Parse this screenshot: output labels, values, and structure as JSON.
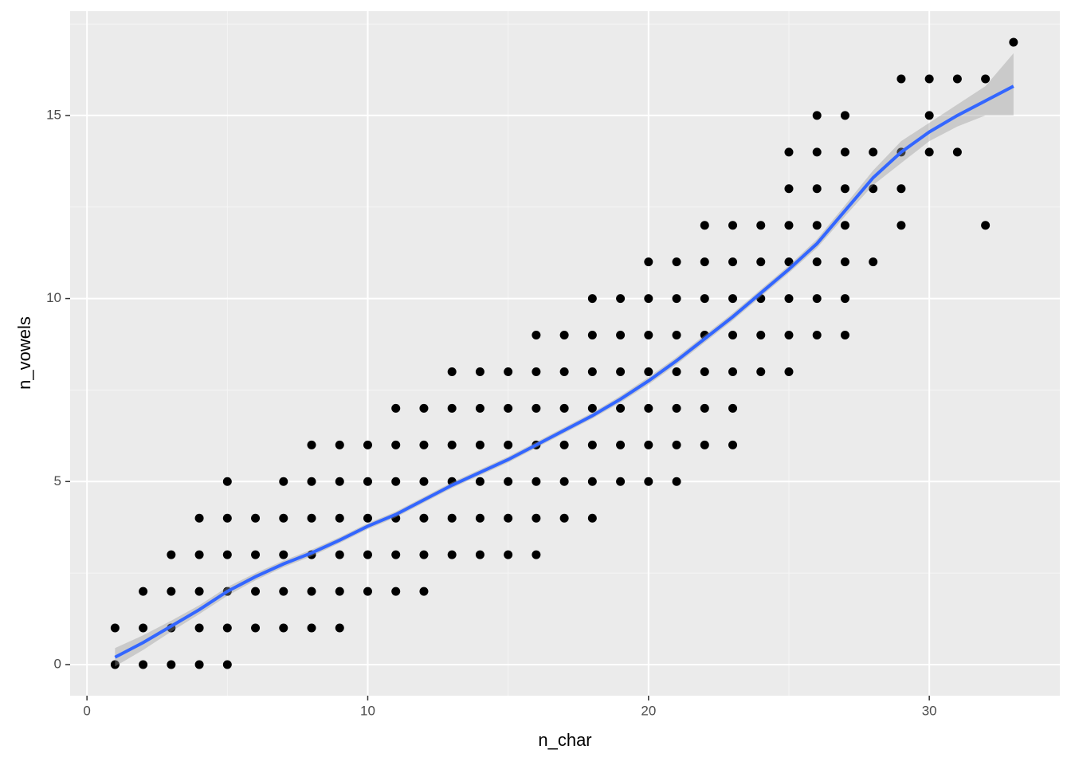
{
  "chart_data": {
    "type": "scatter",
    "x_label": "n_char",
    "y_label": "n_vowels",
    "xlim": [
      -0.6,
      34.65
    ],
    "ylim": [
      -0.85,
      17.85
    ],
    "xticks": [
      0,
      10,
      20,
      30
    ],
    "yticks": [
      0,
      5,
      10,
      15
    ],
    "grid": true,
    "points": {
      "color": "#000000",
      "x": [
        1,
        1,
        2,
        2,
        2,
        3,
        3,
        3,
        3,
        4,
        4,
        4,
        4,
        4,
        5,
        5,
        5,
        5,
        5,
        5,
        6,
        6,
        6,
        6,
        7,
        7,
        7,
        7,
        7,
        8,
        8,
        8,
        8,
        8,
        8,
        9,
        9,
        9,
        9,
        9,
        9,
        10,
        10,
        10,
        10,
        10,
        11,
        11,
        11,
        11,
        11,
        11,
        12,
        12,
        12,
        12,
        12,
        12,
        13,
        13,
        13,
        13,
        13,
        13,
        14,
        14,
        14,
        14,
        14,
        14,
        15,
        15,
        15,
        15,
        15,
        15,
        16,
        16,
        16,
        16,
        16,
        16,
        16,
        17,
        17,
        17,
        17,
        17,
        17,
        18,
        18,
        18,
        18,
        18,
        18,
        18,
        19,
        19,
        19,
        19,
        19,
        19,
        20,
        20,
        20,
        20,
        20,
        20,
        20,
        21,
        21,
        21,
        21,
        21,
        21,
        21,
        22,
        22,
        22,
        22,
        22,
        22,
        22,
        23,
        23,
        23,
        23,
        23,
        23,
        23,
        24,
        24,
        24,
        24,
        24,
        25,
        25,
        25,
        25,
        25,
        25,
        25,
        26,
        26,
        26,
        26,
        26,
        26,
        26,
        27,
        27,
        27,
        27,
        27,
        27,
        27,
        28,
        28,
        28,
        29,
        29,
        29,
        29,
        30,
        30,
        30,
        31,
        31,
        32,
        32,
        33
      ],
      "y": [
        0,
        1,
        0,
        1,
        2,
        0,
        1,
        2,
        3,
        0,
        1,
        2,
        3,
        4,
        0,
        1,
        2,
        3,
        4,
        5,
        1,
        2,
        3,
        4,
        1,
        2,
        3,
        4,
        5,
        1,
        2,
        3,
        4,
        5,
        6,
        1,
        2,
        3,
        4,
        5,
        6,
        2,
        3,
        4,
        5,
        6,
        2,
        3,
        4,
        5,
        6,
        7,
        2,
        3,
        4,
        5,
        6,
        7,
        3,
        4,
        5,
        6,
        7,
        8,
        3,
        4,
        5,
        6,
        7,
        8,
        3,
        4,
        5,
        6,
        7,
        8,
        3,
        4,
        5,
        6,
        7,
        8,
        9,
        4,
        5,
        6,
        7,
        8,
        9,
        4,
        5,
        6,
        7,
        8,
        9,
        10,
        5,
        6,
        7,
        8,
        9,
        10,
        5,
        6,
        7,
        8,
        9,
        10,
        11,
        5,
        6,
        7,
        8,
        9,
        10,
        11,
        6,
        7,
        8,
        9,
        10,
        11,
        12,
        6,
        7,
        8,
        9,
        10,
        11,
        12,
        8,
        9,
        10,
        11,
        12,
        8,
        9,
        10,
        11,
        12,
        13,
        14,
        9,
        10,
        11,
        12,
        13,
        14,
        15,
        9,
        10,
        11,
        12,
        13,
        14,
        15,
        11,
        13,
        14,
        12,
        13,
        14,
        16,
        14,
        15,
        16,
        14,
        16,
        12,
        16,
        17
      ]
    },
    "smooth": {
      "color": "#3366FF",
      "band_color": "#999999",
      "x": [
        1,
        2,
        3,
        4,
        5,
        6,
        7,
        8,
        9,
        10,
        11,
        12,
        13,
        14,
        15,
        16,
        17,
        18,
        19,
        20,
        21,
        22,
        23,
        24,
        25,
        26,
        27,
        28,
        29,
        30,
        31,
        32,
        33
      ],
      "y": [
        0.2,
        0.6,
        1.05,
        1.5,
        2.0,
        2.4,
        2.75,
        3.05,
        3.4,
        3.78,
        4.1,
        4.5,
        4.9,
        5.25,
        5.6,
        6.0,
        6.4,
        6.8,
        7.25,
        7.75,
        8.3,
        8.9,
        9.5,
        10.15,
        10.8,
        11.5,
        12.4,
        13.3,
        14.0,
        14.55,
        15.0,
        15.4,
        15.8
      ],
      "ymin": [
        -0.05,
        0.4,
        0.9,
        1.38,
        1.88,
        2.3,
        2.66,
        2.96,
        3.32,
        3.7,
        4.02,
        4.42,
        4.82,
        5.17,
        5.52,
        5.92,
        6.32,
        6.72,
        7.16,
        7.65,
        8.2,
        8.8,
        9.4,
        10.05,
        10.7,
        11.38,
        12.25,
        13.1,
        13.7,
        14.3,
        14.7,
        15.0,
        15.0
      ],
      "ymax": [
        0.45,
        0.8,
        1.2,
        1.62,
        2.12,
        2.5,
        2.84,
        3.14,
        3.48,
        3.86,
        4.18,
        4.58,
        4.98,
        5.33,
        5.68,
        6.08,
        6.48,
        6.88,
        7.34,
        7.85,
        8.4,
        9.0,
        9.6,
        10.25,
        10.9,
        11.62,
        12.55,
        13.5,
        14.3,
        14.8,
        15.3,
        15.8,
        16.7
      ]
    }
  }
}
